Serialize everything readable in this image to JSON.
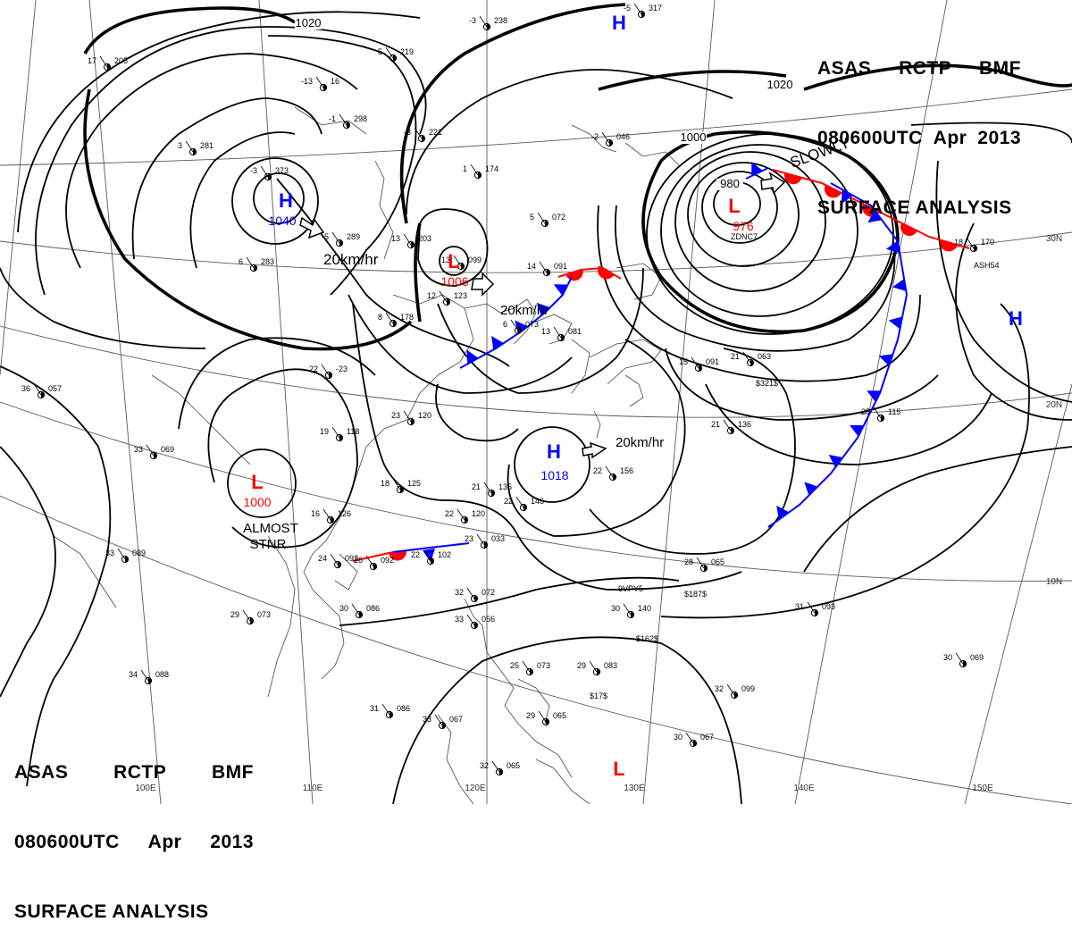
{
  "header": {
    "agency": "ASAS",
    "station": "RCTP",
    "office": "BMF",
    "valid_time": "080600UTC",
    "month": "Apr",
    "year": "2013",
    "product": "SURFACE ANALYSIS"
  },
  "isobar_labels": [
    "1020",
    "1020",
    "1000",
    "980"
  ],
  "pressure_systems": [
    {
      "type": "H",
      "value": "1040",
      "color": "#0000ff",
      "motion": "20km/hr"
    },
    {
      "type": "L",
      "value": "1006",
      "color": "#ff0000",
      "motion": "20km/hr"
    },
    {
      "type": "L",
      "value": "976",
      "color": "#ff0000",
      "motion": "SLOWLY"
    },
    {
      "type": "H",
      "value": "1018",
      "color": "#0000ff",
      "motion": "20km/hr"
    },
    {
      "type": "L",
      "value": "1000",
      "color": "#ff0000",
      "motion": "ALMOST STNR"
    },
    {
      "type": "H",
      "value": "",
      "color": "#0000ff",
      "motion": ""
    },
    {
      "type": "H",
      "value": "",
      "color": "#0000ff",
      "motion": ""
    },
    {
      "type": "L",
      "value": "",
      "color": "#ff0000",
      "motion": ""
    }
  ],
  "stnr_words": [
    "ALMOST",
    "STNR"
  ],
  "lon_labels": [
    "100E",
    "110E",
    "120E",
    "130E",
    "140E",
    "150E"
  ],
  "lat_labels": [
    "30N",
    "20N",
    "10N"
  ],
  "station_plots": [
    {
      "t": "-3",
      "p": "238"
    },
    {
      "t": "-5",
      "p": "317"
    },
    {
      "t": "17",
      "p": "205"
    },
    {
      "t": "5",
      "p": "219"
    },
    {
      "t": "-13",
      "p": "16"
    },
    {
      "t": "-1",
      "p": "298"
    },
    {
      "t": "-3",
      "p": "221"
    },
    {
      "t": "3",
      "p": "281"
    },
    {
      "t": "-3",
      "p": "373"
    },
    {
      "t": "1",
      "p": "174"
    },
    {
      "t": "5",
      "p": "072"
    },
    {
      "t": "-2",
      "p": "046"
    },
    {
      "t": "-5",
      "p": "289"
    },
    {
      "t": "13",
      "p": "203"
    },
    {
      "t": "6",
      "p": "283"
    },
    {
      "t": "13",
      "p": "099"
    },
    {
      "t": "14",
      "p": "091"
    },
    {
      "t": "12",
      "p": "123"
    },
    {
      "t": "8",
      "p": "178"
    },
    {
      "t": "6",
      "p": "073"
    },
    {
      "t": "13",
      "p": "081"
    },
    {
      "t": "22",
      "p": "-23"
    },
    {
      "t": "15",
      "p": "091"
    },
    {
      "t": "21",
      "p": "063"
    },
    {
      "t": "36",
      "p": "057"
    },
    {
      "t": "19",
      "p": "118"
    },
    {
      "t": "23",
      "p": "120"
    },
    {
      "t": "21",
      "p": "136"
    },
    {
      "t": "25",
      "p": "115"
    },
    {
      "t": "18",
      "p": "170"
    },
    {
      "t": "33",
      "p": "069"
    },
    {
      "t": "18",
      "p": "125"
    },
    {
      "t": "21",
      "p": "135"
    },
    {
      "t": "22",
      "p": "146"
    },
    {
      "t": "22",
      "p": "156"
    },
    {
      "t": "16",
      "p": "126"
    },
    {
      "t": "22",
      "p": "120"
    },
    {
      "t": "23",
      "p": "033"
    },
    {
      "t": "26",
      "p": "092"
    },
    {
      "t": "24",
      "p": "092"
    },
    {
      "t": "28",
      "p": "065"
    },
    {
      "t": "22",
      "p": "102"
    },
    {
      "t": "33",
      "p": "089"
    },
    {
      "t": "30",
      "p": "086"
    },
    {
      "t": "29",
      "p": "073"
    },
    {
      "t": "32",
      "p": "072"
    },
    {
      "t": "33",
      "p": "056"
    },
    {
      "t": "30",
      "p": "140"
    },
    {
      "t": "31",
      "p": "093"
    },
    {
      "t": "29",
      "p": "083"
    },
    {
      "t": "25",
      "p": "073"
    },
    {
      "t": "32",
      "p": "099"
    },
    {
      "t": "34",
      "p": "088"
    },
    {
      "t": "31",
      "p": "086"
    },
    {
      "t": "33",
      "p": "067"
    },
    {
      "t": "29",
      "p": "065"
    },
    {
      "t": "30",
      "p": "067"
    },
    {
      "t": "32",
      "p": "065"
    },
    {
      "t": "30",
      "p": "069"
    }
  ],
  "ship_ids": [
    "ZDNC7",
    "ASH54",
    "9VPY5"
  ],
  "ship_codes": [
    "$321$",
    "$187$",
    "$162$",
    "$17$"
  ],
  "colors": {
    "isobar": "#000000",
    "graticule": "#5a5a5a",
    "coast": "#444444",
    "cold_front": "#0000ff",
    "warm_front": "#ff0000",
    "high": "#0000ff",
    "low": "#ff0000"
  }
}
